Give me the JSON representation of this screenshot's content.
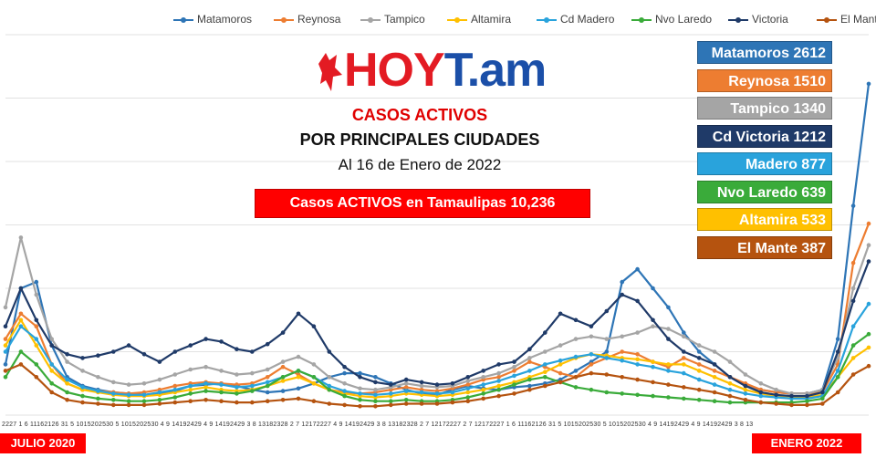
{
  "legend": [
    {
      "name": "Matamoros",
      "color": "#2e75b6"
    },
    {
      "name": "Reynosa",
      "color": "#ed7d31"
    },
    {
      "name": "Tampico",
      "color": "#a5a5a5"
    },
    {
      "name": "Altamira",
      "color": "#ffc000"
    },
    {
      "name": "Cd Madero",
      "color": "#29a3dc"
    },
    {
      "name": "Nvo Laredo",
      "color": "#3aab3a"
    },
    {
      "name": "Victoria",
      "color": "#1f3a68"
    },
    {
      "name": "El Mante",
      "color": "#b5530f"
    }
  ],
  "logo": {
    "text_a": "HOY",
    "text_b": "T.am"
  },
  "header": {
    "line1": "CASOS ACTIVOS",
    "line2": "POR PRINCIPALES CIUDADES",
    "line3": "Al 16 de Enero de 2022"
  },
  "total_box": "Casos ACTIVOS en Tamaulipas  10,236",
  "city_labels": [
    {
      "text": "Matamoros 2612",
      "color": "#2e75b6"
    },
    {
      "text": "Reynosa 1510",
      "color": "#ed7d31"
    },
    {
      "text": "Tampico 1340",
      "color": "#a5a5a5"
    },
    {
      "text": "Cd Victoria 1212",
      "color": "#1f3a68"
    },
    {
      "text": "Madero 877",
      "color": "#29a3dc"
    },
    {
      "text": "Nvo Laredo 639",
      "color": "#3aab3a"
    },
    {
      "text": "Altamira 533",
      "color": "#ffc000"
    },
    {
      "text": "El Mante 387",
      "color": "#b5530f"
    }
  ],
  "start_label": "JULIO 2020",
  "end_label": "ENERO 2022",
  "x_tick_text": "2227 1 6 11162126 31 5 1015202530 5 1015202530 4 9 14192429 4 9 14192429 3 8 13182328 2 7 12172227 4 9 14192429 3 8 13182328 2 7 12172227 2 7 12172227 1 6 11162126 31 5 1015202530 5 1015202530 4 9 14192429 4 9 14192429 3 8 13",
  "chart_data": {
    "type": "line",
    "title": "CASOS ACTIVOS POR PRINCIPALES CIUDADES",
    "x_range": [
      "2020-07-22",
      "2022-01-16"
    ],
    "ylabel": "",
    "ylim": [
      0,
      3000
    ],
    "grid": true,
    "legend_position": "top",
    "series": [
      {
        "name": "Matamoros",
        "color": "#2e75b6",
        "values": [
          400,
          1000,
          1050,
          550,
          300,
          230,
          200,
          180,
          170,
          160,
          170,
          190,
          230,
          240,
          250,
          230,
          200,
          180,
          190,
          210,
          250,
          300,
          330,
          330,
          300,
          250,
          200,
          170,
          160,
          200,
          230,
          210,
          200,
          220,
          230,
          250,
          280,
          350,
          420,
          500,
          1050,
          1150,
          1000,
          850,
          650,
          500,
          400,
          300,
          230,
          200,
          180,
          170,
          170,
          200,
          600,
          1650,
          2612
        ]
      },
      {
        "name": "Reynosa",
        "color": "#ed7d31",
        "values": [
          600,
          800,
          700,
          400,
          250,
          200,
          190,
          180,
          170,
          180,
          200,
          230,
          250,
          260,
          250,
          240,
          250,
          300,
          380,
          320,
          250,
          200,
          180,
          170,
          180,
          200,
          220,
          200,
          190,
          210,
          240,
          280,
          300,
          350,
          420,
          380,
          330,
          300,
          400,
          450,
          500,
          480,
          420,
          380,
          450,
          400,
          350,
          300,
          250,
          200,
          180,
          170,
          170,
          180,
          400,
          1200,
          1510
        ]
      },
      {
        "name": "Tampico",
        "color": "#a5a5a5",
        "values": [
          850,
          1400,
          950,
          600,
          420,
          350,
          300,
          260,
          240,
          250,
          280,
          320,
          360,
          380,
          350,
          320,
          330,
          360,
          420,
          460,
          400,
          300,
          250,
          210,
          200,
          220,
          250,
          230,
          220,
          230,
          270,
          300,
          330,
          380,
          450,
          500,
          550,
          600,
          620,
          600,
          620,
          650,
          700,
          680,
          620,
          550,
          500,
          420,
          320,
          250,
          200,
          170,
          170,
          200,
          450,
          1000,
          1340
        ]
      },
      {
        "name": "Altamira",
        "color": "#ffc000",
        "values": [
          550,
          750,
          550,
          350,
          250,
          200,
          180,
          160,
          150,
          150,
          160,
          180,
          200,
          220,
          200,
          190,
          200,
          230,
          270,
          300,
          250,
          200,
          170,
          150,
          140,
          150,
          170,
          160,
          150,
          160,
          180,
          200,
          230,
          260,
          300,
          340,
          400,
          450,
          480,
          470,
          450,
          440,
          420,
          400,
          400,
          350,
          300,
          250,
          200,
          170,
          150,
          140,
          140,
          160,
          300,
          450,
          533
        ]
      },
      {
        "name": "Cd Madero",
        "color": "#29a3dc",
        "values": [
          500,
          700,
          600,
          400,
          280,
          220,
          190,
          170,
          160,
          160,
          180,
          200,
          230,
          250,
          240,
          220,
          230,
          260,
          300,
          350,
          300,
          230,
          190,
          170,
          160,
          170,
          190,
          180,
          170,
          180,
          210,
          240,
          270,
          310,
          350,
          400,
          430,
          460,
          480,
          450,
          430,
          400,
          380,
          350,
          330,
          280,
          240,
          200,
          170,
          150,
          140,
          130,
          130,
          150,
          350,
          700,
          877
        ]
      },
      {
        "name": "Nvo Laredo",
        "color": "#3aab3a",
        "values": [
          300,
          500,
          400,
          250,
          180,
          150,
          130,
          120,
          110,
          110,
          120,
          140,
          170,
          190,
          180,
          170,
          190,
          230,
          300,
          350,
          300,
          200,
          150,
          120,
          110,
          110,
          120,
          110,
          110,
          120,
          140,
          170,
          200,
          240,
          280,
          300,
          260,
          220,
          200,
          180,
          170,
          160,
          150,
          140,
          130,
          120,
          110,
          100,
          100,
          100,
          100,
          100,
          110,
          130,
          300,
          550,
          639
        ]
      },
      {
        "name": "Victoria",
        "color": "#1f3a68",
        "values": [
          700,
          1000,
          750,
          550,
          480,
          450,
          470,
          500,
          550,
          480,
          420,
          500,
          550,
          600,
          580,
          520,
          500,
          560,
          650,
          800,
          700,
          500,
          380,
          300,
          260,
          240,
          280,
          260,
          240,
          250,
          300,
          350,
          400,
          420,
          520,
          650,
          800,
          750,
          700,
          820,
          950,
          900,
          750,
          600,
          500,
          450,
          400,
          300,
          230,
          180,
          160,
          150,
          150,
          180,
          500,
          900,
          1212
        ]
      },
      {
        "name": "El Mante",
        "color": "#b5530f",
        "values": [
          350,
          400,
          300,
          180,
          120,
          100,
          90,
          80,
          80,
          80,
          90,
          100,
          110,
          120,
          110,
          100,
          100,
          110,
          120,
          130,
          110,
          90,
          80,
          70,
          70,
          80,
          90,
          90,
          90,
          100,
          110,
          130,
          150,
          170,
          200,
          230,
          260,
          300,
          330,
          320,
          300,
          280,
          260,
          240,
          220,
          200,
          180,
          150,
          120,
          100,
          90,
          80,
          80,
          90,
          180,
          320,
          387
        ]
      }
    ]
  }
}
